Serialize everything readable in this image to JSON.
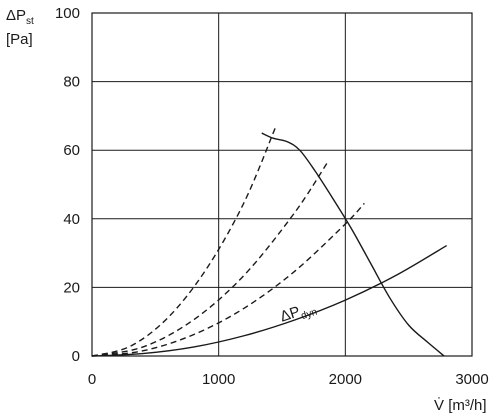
{
  "chart_data": {
    "type": "line",
    "xlim": [
      0,
      3000
    ],
    "ylim": [
      0,
      100
    ],
    "x_ticks": [
      "0",
      "1000",
      "2000",
      "3000"
    ],
    "y_ticks": [
      "0",
      "20",
      "40",
      "60",
      "80",
      "100"
    ],
    "xlabel": {
      "symbol": "V̇",
      "unit": "[m³/h]"
    },
    "ylabel": {
      "symbol": "ΔP",
      "subscript": "st",
      "unit": "[Pa]"
    },
    "grid": true,
    "series": [
      {
        "style": "solid",
        "points": [
          [
            1340,
            65
          ],
          [
            1430,
            63.5
          ],
          [
            1540,
            62.5
          ],
          [
            1640,
            60
          ],
          [
            1760,
            54
          ],
          [
            1900,
            46
          ],
          [
            2050,
            37
          ],
          [
            2200,
            27
          ],
          [
            2350,
            17
          ],
          [
            2500,
            9
          ],
          [
            2650,
            4
          ],
          [
            2780,
            0
          ]
        ]
      },
      {
        "name": "ΔP",
        "name_subscript": "dyn",
        "style": "solid",
        "label_at": [
          1500,
          10
        ],
        "points": [
          [
            0,
            0
          ],
          [
            400,
            0.7
          ],
          [
            800,
            2.6
          ],
          [
            1200,
            5.9
          ],
          [
            1600,
            10.5
          ],
          [
            2000,
            16.3
          ],
          [
            2400,
            23.5
          ],
          [
            2800,
            32.2
          ]
        ]
      },
      {
        "style": "dashed",
        "points": [
          [
            0,
            0
          ],
          [
            300,
            2.8
          ],
          [
            600,
            11.2
          ],
          [
            900,
            25.2
          ],
          [
            1200,
            44.7
          ],
          [
            1450,
            66.8
          ]
        ]
      },
      {
        "style": "dashed",
        "points": [
          [
            0,
            0
          ],
          [
            400,
            2.6
          ],
          [
            800,
            10.5
          ],
          [
            1200,
            23.5
          ],
          [
            1600,
            41.8
          ],
          [
            1860,
            56.5
          ]
        ]
      },
      {
        "style": "dashed",
        "points": [
          [
            0,
            0
          ],
          [
            400,
            1.5
          ],
          [
            800,
            6.2
          ],
          [
            1200,
            13.9
          ],
          [
            1600,
            24.7
          ],
          [
            2000,
            38.5
          ],
          [
            2150,
            44.5
          ]
        ]
      }
    ]
  }
}
